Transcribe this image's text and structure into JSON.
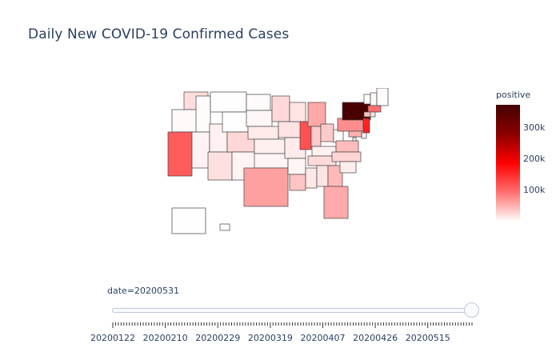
{
  "title": "Daily New COVID-19 Confirmed Cases",
  "colorbar": {
    "title": "positive",
    "ticks": [
      "100k",
      "200k",
      "300k"
    ],
    "tick_values": [
      100000,
      200000,
      300000
    ],
    "range": [
      0,
      375000
    ],
    "colors": [
      "#ffffff",
      "#ff7070",
      "#ff0000",
      "#8b0000",
      "#450000"
    ]
  },
  "slider": {
    "current_label": "date=20200531",
    "current_value": "20200531",
    "tick_labels": [
      "20200122",
      "20200210",
      "20200229",
      "20200319",
      "20200407",
      "20200426",
      "20200515"
    ]
  },
  "chart_data": {
    "type": "choropleth",
    "title": "Daily New COVID-19 Confirmed Cases",
    "scope": "usa",
    "color_variable": "positive",
    "frame": "20200531",
    "values_by_state": {
      "NY": 370000,
      "NJ": 160000,
      "IL": 120000,
      "CA": 110000,
      "MA": 95000,
      "PA": 75000,
      "TX": 62000,
      "MI": 57000,
      "FL": 56000,
      "MD": 52000,
      "GA": 46000,
      "CT": 42000,
      "LA": 39000,
      "VA": 44000,
      "OH": 35000,
      "IN": 35000,
      "NC": 28000,
      "MN": 25000,
      "TN": 24000,
      "CO": 26000,
      "WA": 22000,
      "AZ": 20000,
      "IA": 19000,
      "WI": 18000,
      "AL": 18000,
      "MS": 15000,
      "NE": 14000,
      "RI": 15000,
      "MO": 13000,
      "SC": 11000,
      "KS": 9900,
      "KY": 9700,
      "DE": 9600,
      "UT": 9500,
      "DC": 8800,
      "NV": 8500,
      "NM": 7600,
      "AR": 6800,
      "OK": 6400,
      "SD": 5000,
      "NH": 4500,
      "OR": 4100,
      "ID": 2900,
      "ND": 2500,
      "ME": 2300,
      "WV": 2000,
      "VT": 980,
      "WY": 900,
      "HI": 650,
      "MT": 540,
      "AK": 430
    }
  }
}
